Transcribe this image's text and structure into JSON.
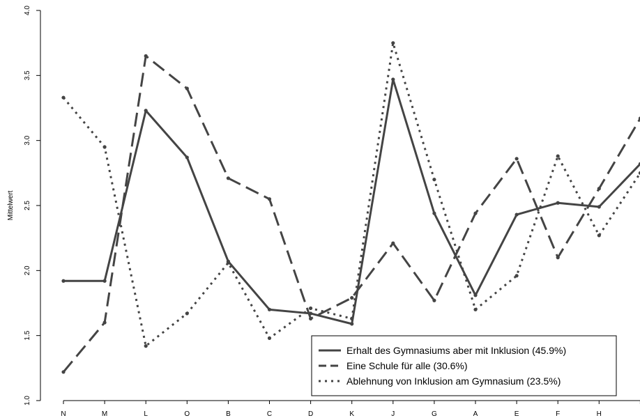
{
  "chart_data": {
    "type": "line",
    "title": "",
    "xlabel": "",
    "ylabel": "Mittelwert",
    "ylim": [
      1.0,
      4.0
    ],
    "yticks": [
      "1.0",
      "1.5",
      "2.0",
      "2.5",
      "3.0",
      "3.5",
      "4.0"
    ],
    "categories": [
      "N",
      "M",
      "L",
      "O",
      "B",
      "C",
      "D",
      "K",
      "J",
      "G",
      "A",
      "E",
      "F",
      "H",
      ""
    ],
    "grid": false,
    "legend_position": "bottom-right",
    "series": [
      {
        "name": "Erhalt des Gymnasiums aber mit Inklusion (45.9%)",
        "style": "solid",
        "color": "#444444",
        "values": [
          1.92,
          1.92,
          3.23,
          2.87,
          2.07,
          1.7,
          1.67,
          1.59,
          3.47,
          2.44,
          1.81,
          2.43,
          2.52,
          2.49,
          2.82
        ]
      },
      {
        "name": "Eine Schule für alle (30.6%)",
        "style": "dashed",
        "color": "#444444",
        "values": [
          1.22,
          1.6,
          3.65,
          3.4,
          2.71,
          2.55,
          1.63,
          1.79,
          2.21,
          1.77,
          2.44,
          2.86,
          2.1,
          2.63,
          3.17
        ]
      },
      {
        "name": "Ablehnung von Inklusion am Gymnasium (23.5%)",
        "style": "dotted",
        "color": "#444444",
        "values": [
          3.33,
          2.95,
          1.42,
          1.67,
          2.06,
          1.48,
          1.71,
          1.63,
          3.75,
          2.7,
          1.7,
          1.96,
          2.88,
          2.27,
          2.75
        ]
      }
    ]
  }
}
